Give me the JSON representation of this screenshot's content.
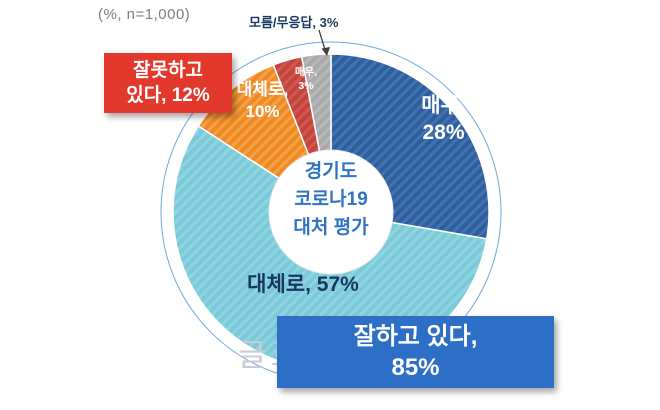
{
  "figure": {
    "note": "(%, n=1,000)",
    "watermark": "글로벌이코노믹"
  },
  "chart_data": {
    "type": "pie",
    "donut": true,
    "title": "경기도 코로나19 대처 평가",
    "center_label_lines": [
      "경기도",
      "코로나19",
      "대처 평가"
    ],
    "note": "(%, n=1,000)",
    "unit": "%",
    "start_angle_deg": 0,
    "direction": "clockwise",
    "ring_color": "#6FA8DC",
    "center_text_color": "#2E74C5",
    "annotation_color": "#17375E",
    "note_color": "#7F7F7F",
    "slices": [
      {
        "id": "very-well",
        "group": "잘하고 있다",
        "label": "매우",
        "value": 28,
        "callout_lines": [
          "매우,",
          "28%"
        ],
        "color": "#2E5E9E",
        "hatch_color": "#4273B0",
        "text_color": "#FFFFFF"
      },
      {
        "id": "mostly-well",
        "group": "잘하고 있다",
        "label": "대체로",
        "value": 57,
        "callout_lines": [
          "대체로, 57%"
        ],
        "color": "#7CC9D8",
        "hatch_color": "#8ED5E2",
        "text_color": "#17375E"
      },
      {
        "id": "mostly-badly",
        "group": "잘못하고 있다",
        "label": "대체로",
        "value": 10,
        "callout_lines": [
          "대체로,",
          "10%"
        ],
        "color": "#F18A1E",
        "hatch_color": "#F4A14E",
        "text_color": "#FFFFFF"
      },
      {
        "id": "very-badly",
        "group": "잘못하고 있다",
        "label": "매우",
        "value": 3,
        "callout_lines": [
          "매우,",
          "3%"
        ],
        "color": "#C5433C",
        "hatch_color": "#CE5A51",
        "text_color": "#FFFFFF"
      },
      {
        "id": "unknown",
        "group": "모름/무응답",
        "label": "모름/무응답",
        "value": 3,
        "callout_lines": [
          "모름/무응답, 3%"
        ],
        "color": "#A9A9A9",
        "hatch_color": "#B8B8B8",
        "text_color": "#17375E"
      }
    ],
    "groups": [
      {
        "label": "잘하고 있다",
        "value": 85,
        "lines": [
          "잘하고 있다,",
          "85%"
        ],
        "box_color": "#2D6FC7"
      },
      {
        "label": "잘못하고 있다",
        "value": 12,
        "lines": [
          "잘못하고",
          "있다, 12%"
        ],
        "box_color": "#E3392C"
      },
      {
        "label": "모름/무응답",
        "value": 3
      }
    ]
  }
}
